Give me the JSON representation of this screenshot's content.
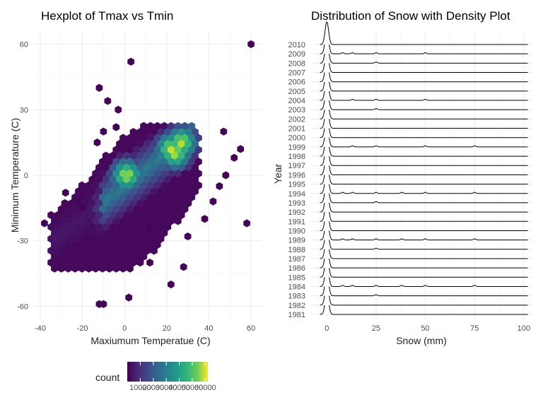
{
  "chart_data": [
    {
      "type": "hexbin",
      "title": "Hexplot of Tmax vs Tmin",
      "xlabel": "Maxiumum Temperatue (C)",
      "ylabel": "Minimum Temperature (C)",
      "xlim": [
        -43,
        65
      ],
      "ylim": [
        -66,
        66
      ],
      "x_ticks": [
        -40,
        -20,
        0,
        20,
        40,
        60
      ],
      "y_ticks": [
        -60,
        -30,
        0,
        30,
        60
      ],
      "grid": true,
      "color_scale": "viridis",
      "legend": {
        "title": "count",
        "position": "bottom",
        "tick_labels": [
          "10000",
          "20000",
          "30000",
          "40000",
          "50000",
          "60000"
        ],
        "range": [
          0,
          62000
        ]
      },
      "dense_band": {
        "x_range": [
          -35,
          32
        ],
        "y_min_at_x": [
          [
            -35,
            -44
          ],
          [
            -20,
            -44
          ],
          [
            0,
            -44
          ],
          [
            10,
            -40
          ],
          [
            25,
            -22
          ],
          [
            36,
            -8
          ]
        ],
        "y_max_at_x": [
          [
            -35,
            -18
          ],
          [
            -20,
            -4
          ],
          [
            -10,
            8
          ],
          [
            0,
            18
          ],
          [
            10,
            25
          ],
          [
            20,
            25
          ],
          [
            30,
            25
          ],
          [
            36,
            18
          ]
        ],
        "peak_points": [
          [
            1,
            0
          ],
          [
            27,
            15
          ],
          [
            24,
            10
          ],
          [
            22,
            12
          ]
        ]
      },
      "outlier_points": [
        [
          3,
          52
        ],
        [
          60,
          60
        ],
        [
          -12,
          40
        ],
        [
          -8,
          34
        ],
        [
          -3,
          30
        ],
        [
          -4,
          22
        ],
        [
          -10,
          20
        ],
        [
          -13,
          15
        ],
        [
          47,
          20
        ],
        [
          55,
          12
        ],
        [
          52,
          8
        ],
        [
          48,
          0
        ],
        [
          45,
          -5
        ],
        [
          -38,
          -22
        ],
        [
          -20,
          -15
        ],
        [
          -28,
          -8
        ],
        [
          12,
          -24
        ],
        [
          58,
          -22
        ],
        [
          12,
          -40
        ],
        [
          28,
          -42
        ],
        [
          22,
          -50
        ],
        [
          2,
          -56
        ],
        [
          -10,
          -59
        ],
        [
          -12,
          -59
        ],
        [
          42,
          -12
        ],
        [
          30,
          -28
        ],
        [
          -22,
          -12
        ],
        [
          38,
          -20
        ]
      ]
    },
    {
      "type": "ridgeline",
      "title": "Distribution of Snow with Density Plot",
      "xlabel": "Snow (mm)",
      "ylabel": "Year",
      "xlim": [
        -8,
        104
      ],
      "x_ticks": [
        0,
        25,
        50,
        75,
        100
      ],
      "grid": true,
      "categories": [
        "1981",
        "1982",
        "1983",
        "1984",
        "1985",
        "1986",
        "1987",
        "1988",
        "1989",
        "1990",
        "1991",
        "1992",
        "1993",
        "1994",
        "1995",
        "1996",
        "1997",
        "1998",
        "1999",
        "2000",
        "2001",
        "2002",
        "2003",
        "2004",
        "2005",
        "2006",
        "2007",
        "2008",
        "2009",
        "2010"
      ],
      "density_peak_x": 0,
      "density_sd": 0.9,
      "x_max_line": 102,
      "minor_bumps": {
        "1983": [
          25
        ],
        "1984": [
          8,
          13,
          25,
          38,
          50,
          75
        ],
        "1988": [
          25
        ],
        "1989": [
          8,
          13,
          25,
          38,
          50,
          75
        ],
        "1993": [
          25
        ],
        "1994": [
          8,
          13,
          25,
          38,
          50,
          75
        ],
        "1999": [
          13,
          25,
          50,
          75
        ],
        "2003": [
          25
        ],
        "2004": [
          13,
          25,
          50
        ],
        "2008": [
          25
        ],
        "2009": [
          8,
          13,
          25,
          50
        ]
      }
    }
  ]
}
